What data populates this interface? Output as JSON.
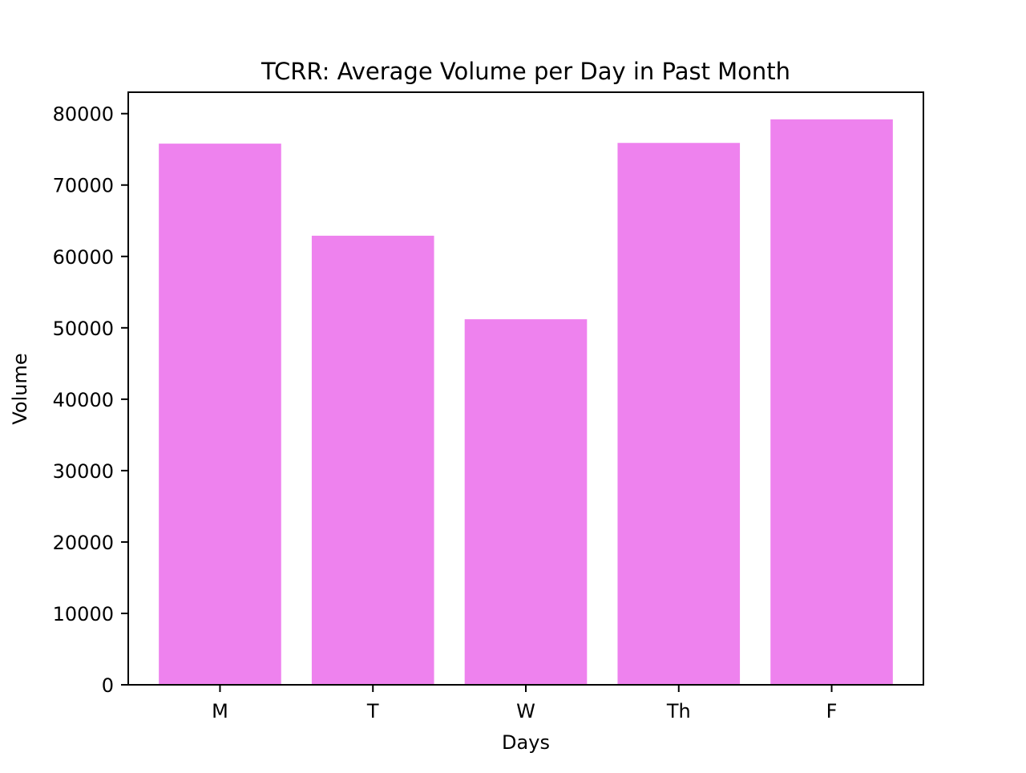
{
  "chart_data": {
    "type": "bar",
    "title": "TCRR: Average Volume per Day in Past Month",
    "xlabel": "Days",
    "ylabel": "Volume",
    "categories": [
      "M",
      "T",
      "W",
      "Th",
      "F"
    ],
    "values": [
      75800,
      62900,
      51200,
      75900,
      79200
    ],
    "ylim": [
      0,
      83000
    ],
    "yticks": [
      0,
      10000,
      20000,
      30000,
      40000,
      50000,
      60000,
      70000,
      80000
    ],
    "bar_color": "#ee82ee",
    "grid": false
  }
}
